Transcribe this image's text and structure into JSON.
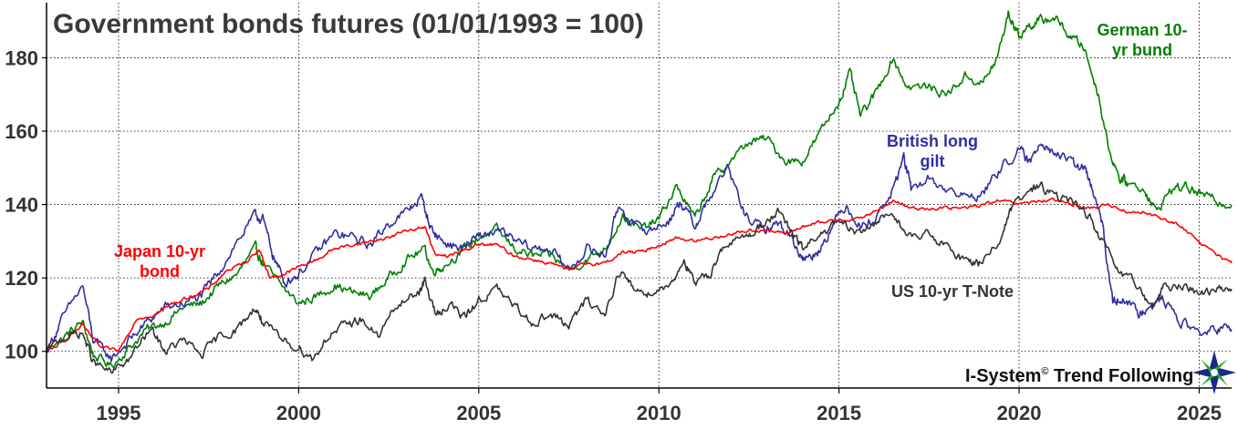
{
  "chart_data": {
    "type": "line",
    "title": "Government bonds futures (01/01/1993 = 100)",
    "xlabel": "",
    "ylabel": "",
    "xlim": [
      1993.0,
      2025.9
    ],
    "ylim": [
      90,
      195
    ],
    "x_ticks": [
      1995,
      2000,
      2005,
      2010,
      2015,
      2020,
      2025
    ],
    "y_ticks": [
      100,
      120,
      140,
      160,
      180
    ],
    "grid": "dotted",
    "legend": "none (labels annotated on chart)",
    "series": [
      {
        "name": "German 10-yr bund",
        "color": "#008000",
        "points": [
          [
            1993.0,
            100
          ],
          [
            1993.5,
            104
          ],
          [
            1994.0,
            108
          ],
          [
            1994.3,
            99
          ],
          [
            1994.8,
            96
          ],
          [
            1995.3,
            101
          ],
          [
            1995.8,
            106
          ],
          [
            1996.3,
            108
          ],
          [
            1996.8,
            112
          ],
          [
            1997.3,
            113
          ],
          [
            1997.8,
            118
          ],
          [
            1998.3,
            121
          ],
          [
            1998.8,
            128
          ],
          [
            1999.0,
            124
          ],
          [
            1999.5,
            118
          ],
          [
            2000.0,
            113
          ],
          [
            2000.5,
            115
          ],
          [
            2001.0,
            118
          ],
          [
            2001.5,
            116
          ],
          [
            2002.0,
            115
          ],
          [
            2002.5,
            120
          ],
          [
            2003.0,
            125
          ],
          [
            2003.5,
            128
          ],
          [
            2003.7,
            122
          ],
          [
            2004.0,
            123
          ],
          [
            2004.5,
            127
          ],
          [
            2005.0,
            131
          ],
          [
            2005.5,
            133
          ],
          [
            2006.0,
            128
          ],
          [
            2006.5,
            126
          ],
          [
            2007.0,
            126
          ],
          [
            2007.5,
            122
          ],
          [
            2008.0,
            125
          ],
          [
            2008.5,
            128
          ],
          [
            2009.0,
            137
          ],
          [
            2009.5,
            133
          ],
          [
            2010.0,
            136
          ],
          [
            2010.5,
            145
          ],
          [
            2011.0,
            136
          ],
          [
            2011.5,
            147
          ],
          [
            2011.9,
            151
          ],
          [
            2012.5,
            157
          ],
          [
            2013.0,
            158
          ],
          [
            2013.5,
            152
          ],
          [
            2014.0,
            152
          ],
          [
            2014.5,
            160
          ],
          [
            2015.0,
            168
          ],
          [
            2015.3,
            176
          ],
          [
            2015.6,
            164
          ],
          [
            2016.0,
            170
          ],
          [
            2016.5,
            180
          ],
          [
            2016.9,
            172
          ],
          [
            2017.5,
            172
          ],
          [
            2018.0,
            170
          ],
          [
            2018.5,
            175
          ],
          [
            2019.0,
            173
          ],
          [
            2019.4,
            180
          ],
          [
            2019.7,
            192
          ],
          [
            2020.0,
            186
          ],
          [
            2020.3,
            189
          ],
          [
            2020.6,
            190
          ],
          [
            2021.0,
            191
          ],
          [
            2021.4,
            186
          ],
          [
            2021.8,
            183
          ],
          [
            2022.2,
            170
          ],
          [
            2022.5,
            155
          ],
          [
            2022.8,
            147
          ],
          [
            2023.0,
            146
          ],
          [
            2023.5,
            144
          ],
          [
            2023.8,
            138
          ],
          [
            2024.2,
            144
          ],
          [
            2024.6,
            145
          ],
          [
            2025.0,
            143
          ],
          [
            2025.5,
            141
          ],
          [
            2025.9,
            140
          ]
        ]
      },
      {
        "name": "British long gilt",
        "color": "#2f2fa0",
        "points": [
          [
            1993.0,
            100
          ],
          [
            1993.4,
            108
          ],
          [
            1994.0,
            118
          ],
          [
            1994.3,
            103
          ],
          [
            1994.8,
            98
          ],
          [
            1995.3,
            103
          ],
          [
            1995.8,
            108
          ],
          [
            1996.3,
            112
          ],
          [
            1996.8,
            113
          ],
          [
            1997.3,
            115
          ],
          [
            1997.8,
            122
          ],
          [
            1998.3,
            130
          ],
          [
            1998.8,
            137
          ],
          [
            1999.0,
            136
          ],
          [
            1999.3,
            126
          ],
          [
            1999.6,
            119
          ],
          [
            2000.0,
            121
          ],
          [
            2000.5,
            127
          ],
          [
            2001.0,
            132
          ],
          [
            2001.5,
            131
          ],
          [
            2002.0,
            129
          ],
          [
            2002.5,
            135
          ],
          [
            2003.0,
            138
          ],
          [
            2003.4,
            142
          ],
          [
            2003.7,
            133
          ],
          [
            2004.0,
            130
          ],
          [
            2004.5,
            128
          ],
          [
            2005.0,
            131
          ],
          [
            2005.5,
            133
          ],
          [
            2006.0,
            130
          ],
          [
            2006.5,
            128
          ],
          [
            2007.0,
            128
          ],
          [
            2007.5,
            122
          ],
          [
            2008.0,
            128
          ],
          [
            2008.5,
            126
          ],
          [
            2008.9,
            140
          ],
          [
            2009.3,
            134
          ],
          [
            2009.8,
            133
          ],
          [
            2010.3,
            136
          ],
          [
            2010.6,
            141
          ],
          [
            2011.0,
            134
          ],
          [
            2011.3,
            140
          ],
          [
            2011.9,
            150
          ],
          [
            2012.4,
            137
          ],
          [
            2012.9,
            133
          ],
          [
            2013.3,
            135
          ],
          [
            2013.7,
            131
          ],
          [
            2014.0,
            125
          ],
          [
            2014.4,
            127
          ],
          [
            2014.8,
            134
          ],
          [
            2015.2,
            140
          ],
          [
            2015.6,
            134
          ],
          [
            2016.0,
            136
          ],
          [
            2016.5,
            144
          ],
          [
            2016.8,
            153
          ],
          [
            2017.0,
            144
          ],
          [
            2017.5,
            147
          ],
          [
            2018.0,
            144
          ],
          [
            2018.5,
            142
          ],
          [
            2019.0,
            143
          ],
          [
            2019.5,
            150
          ],
          [
            2020.0,
            155
          ],
          [
            2020.3,
            151
          ],
          [
            2020.6,
            158
          ],
          [
            2021.0,
            154
          ],
          [
            2021.5,
            151
          ],
          [
            2021.8,
            150
          ],
          [
            2022.0,
            145
          ],
          [
            2022.3,
            135
          ],
          [
            2022.6,
            113
          ],
          [
            2022.9,
            115
          ],
          [
            2023.3,
            110
          ],
          [
            2023.6,
            113
          ],
          [
            2024.0,
            114
          ],
          [
            2024.5,
            108
          ],
          [
            2025.0,
            105
          ],
          [
            2025.5,
            106
          ],
          [
            2025.9,
            106
          ]
        ]
      },
      {
        "name": "Japan 10-yr bond",
        "color": "#ff0000",
        "points": [
          [
            1993.0,
            100
          ],
          [
            1993.5,
            103
          ],
          [
            1994.0,
            107
          ],
          [
            1994.5,
            101
          ],
          [
            1995.0,
            100
          ],
          [
            1995.5,
            109
          ],
          [
            1996.0,
            110
          ],
          [
            1996.5,
            113
          ],
          [
            1997.0,
            115
          ],
          [
            1997.5,
            117
          ],
          [
            1998.0,
            122
          ],
          [
            1998.5,
            124
          ],
          [
            1998.9,
            128
          ],
          [
            1999.2,
            120
          ],
          [
            1999.6,
            121
          ],
          [
            2000.0,
            123
          ],
          [
            2000.5,
            125
          ],
          [
            2001.0,
            128
          ],
          [
            2001.5,
            129
          ],
          [
            2002.0,
            130
          ],
          [
            2002.5,
            131
          ],
          [
            2003.0,
            133
          ],
          [
            2003.5,
            134
          ],
          [
            2003.8,
            126
          ],
          [
            2004.2,
            126
          ],
          [
            2004.7,
            128
          ],
          [
            2005.0,
            129
          ],
          [
            2005.5,
            129
          ],
          [
            2006.0,
            126
          ],
          [
            2006.5,
            125
          ],
          [
            2007.0,
            124
          ],
          [
            2007.5,
            122
          ],
          [
            2008.0,
            124
          ],
          [
            2008.5,
            124
          ],
          [
            2009.0,
            127
          ],
          [
            2009.5,
            127
          ],
          [
            2010.0,
            129
          ],
          [
            2010.5,
            131
          ],
          [
            2011.0,
            130
          ],
          [
            2011.5,
            131
          ],
          [
            2012.0,
            132
          ],
          [
            2012.5,
            133
          ],
          [
            2013.0,
            133
          ],
          [
            2013.5,
            132
          ],
          [
            2014.0,
            134
          ],
          [
            2014.5,
            135
          ],
          [
            2015.0,
            136
          ],
          [
            2015.5,
            136
          ],
          [
            2016.0,
            138
          ],
          [
            2016.5,
            141
          ],
          [
            2017.0,
            139
          ],
          [
            2017.5,
            139
          ],
          [
            2018.0,
            139
          ],
          [
            2018.5,
            139
          ],
          [
            2019.0,
            140
          ],
          [
            2019.5,
            141
          ],
          [
            2020.0,
            140
          ],
          [
            2020.5,
            141
          ],
          [
            2021.0,
            141
          ],
          [
            2021.5,
            140
          ],
          [
            2022.0,
            139
          ],
          [
            2022.5,
            140
          ],
          [
            2023.0,
            138
          ],
          [
            2023.5,
            138
          ],
          [
            2024.0,
            136
          ],
          [
            2024.5,
            134
          ],
          [
            2025.0,
            130
          ],
          [
            2025.5,
            126
          ],
          [
            2025.9,
            124
          ]
        ]
      },
      {
        "name": "US 10-yr T-Note",
        "color": "#333333",
        "points": [
          [
            1993.0,
            100
          ],
          [
            1993.5,
            104
          ],
          [
            1994.0,
            105
          ],
          [
            1994.3,
            97
          ],
          [
            1994.8,
            94
          ],
          [
            1995.3,
            98
          ],
          [
            1995.9,
            106
          ],
          [
            1996.3,
            100
          ],
          [
            1996.8,
            103
          ],
          [
            1997.3,
            99
          ],
          [
            1997.8,
            104
          ],
          [
            1998.3,
            106
          ],
          [
            1998.8,
            112
          ],
          [
            1999.0,
            108
          ],
          [
            1999.5,
            103
          ],
          [
            2000.0,
            101
          ],
          [
            2000.4,
            98
          ],
          [
            2000.8,
            104
          ],
          [
            2001.3,
            107
          ],
          [
            2001.7,
            109
          ],
          [
            2002.2,
            104
          ],
          [
            2002.7,
            112
          ],
          [
            2003.3,
            116
          ],
          [
            2003.5,
            119
          ],
          [
            2003.8,
            110
          ],
          [
            2004.2,
            113
          ],
          [
            2004.6,
            109
          ],
          [
            2005.0,
            114
          ],
          [
            2005.5,
            117
          ],
          [
            2006.0,
            112
          ],
          [
            2006.5,
            108
          ],
          [
            2007.0,
            110
          ],
          [
            2007.5,
            107
          ],
          [
            2008.0,
            114
          ],
          [
            2008.5,
            110
          ],
          [
            2008.9,
            122
          ],
          [
            2009.3,
            117
          ],
          [
            2009.7,
            116
          ],
          [
            2010.3,
            118
          ],
          [
            2010.7,
            125
          ],
          [
            2011.0,
            118
          ],
          [
            2011.4,
            121
          ],
          [
            2011.8,
            129
          ],
          [
            2012.4,
            131
          ],
          [
            2012.8,
            134
          ],
          [
            2013.3,
            138
          ],
          [
            2013.7,
            132
          ],
          [
            2014.0,
            128
          ],
          [
            2014.5,
            132
          ],
          [
            2015.0,
            135
          ],
          [
            2015.5,
            132
          ],
          [
            2016.0,
            135
          ],
          [
            2016.5,
            138
          ],
          [
            2016.9,
            131
          ],
          [
            2017.5,
            132
          ],
          [
            2018.0,
            128
          ],
          [
            2018.5,
            125
          ],
          [
            2018.9,
            124
          ],
          [
            2019.5,
            131
          ],
          [
            2019.8,
            139
          ],
          [
            2020.3,
            144
          ],
          [
            2020.6,
            145
          ],
          [
            2021.0,
            142
          ],
          [
            2021.5,
            141
          ],
          [
            2022.0,
            136
          ],
          [
            2022.4,
            128
          ],
          [
            2022.8,
            121
          ],
          [
            2023.3,
            118
          ],
          [
            2023.7,
            112
          ],
          [
            2024.0,
            117
          ],
          [
            2024.5,
            118
          ],
          [
            2025.0,
            116
          ],
          [
            2025.5,
            117
          ],
          [
            2025.9,
            117
          ]
        ]
      }
    ],
    "annotations": {
      "german": [
        "German 10-",
        "yr bund"
      ],
      "british": [
        "British long",
        "gilt"
      ],
      "japan": [
        "Japan 10-yr",
        "bond"
      ],
      "us": [
        "US 10-yr T-Note"
      ]
    }
  },
  "branding": {
    "text": "I-System",
    "superscript": "©",
    "suffix": " Trend Following",
    "logo": "star-logo"
  },
  "colors": {
    "german": "#008000",
    "british": "#2f2fa0",
    "japan": "#ff0000",
    "us": "#333333"
  }
}
